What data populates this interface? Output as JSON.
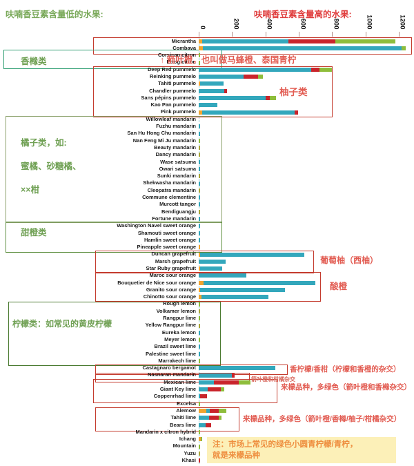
{
  "header": {
    "left_title": "呋喃香豆素含量低的水果:",
    "right_title": "呋喃香豆素含量高的水果:"
  },
  "axis": {
    "ticks": [
      "0",
      "200",
      "400",
      "600",
      "800",
      "1000",
      "1200"
    ],
    "max": 1200
  },
  "colors": {
    "orange": "#f1a42f",
    "teal": "#33a7bc",
    "red": "#c9242b",
    "green": "#8ebd3b",
    "olive": "#a9a63a"
  },
  "annotations": {
    "kaffir_note": "↑ 箭叶橙，也叫做马蜂橙、泰国青柠",
    "citron_group": "香橼类",
    "pummelo_group": "柚子类",
    "mandarin_group_line1": "橘子类，如:",
    "mandarin_group_line2": "蜜橘、砂糖橘、",
    "mandarin_group_line3": "××柑",
    "sweet_orange_group": "甜橙类",
    "grapefruit_group": "葡萄柚（西柚）",
    "sour_orange_group": "酸橙",
    "lemon_group": "柠檬类：如常见的黄皮柠檬",
    "bergamot_note": "香柠檬/香柑（柠檬和香橙的杂交）",
    "nasnaran_note": "箭叶橙和柑橘杂交",
    "lime_group1_note": "来檬品种，多绿色（箭叶橙和香橼杂交）",
    "lime_group2_note": "来檬品种，多绿色（箭叶橙/香橼/柚子/柑橘杂交）",
    "bottom_note_line1": "注：市场上常见的绿色小圆青柠檬/青柠，",
    "bottom_note_line2": "就是来檬品种"
  },
  "chart_data": {
    "type": "bar",
    "orientation": "horizontal",
    "stacked": true,
    "xlim": [
      0,
      1200
    ],
    "x_ticks": [
      0,
      200,
      400,
      600,
      800,
      1000,
      1200
    ],
    "segment_order": [
      "orange",
      "teal",
      "red",
      "green",
      "olive"
    ],
    "rows": [
      {
        "label": "Micrantha",
        "segments": [
          {
            "c": "orange",
            "v": 20
          },
          {
            "c": "teal",
            "v": 520
          },
          {
            "c": "red",
            "v": 280
          },
          {
            "c": "green",
            "v": 360
          }
        ]
      },
      {
        "label": "Combava",
        "segments": [
          {
            "c": "orange",
            "v": 25
          },
          {
            "c": "teal",
            "v": 1190
          },
          {
            "c": "green",
            "v": 25
          }
        ]
      },
      {
        "label": "Corsican citron",
        "segments": [
          {
            "c": "green",
            "v": 8
          }
        ]
      },
      {
        "label": "Etrog citron",
        "segments": [
          {
            "c": "green",
            "v": 10
          }
        ]
      },
      {
        "label": "Deep Red pummelo",
        "segments": [
          {
            "c": "teal",
            "v": 675
          },
          {
            "c": "red",
            "v": 50
          },
          {
            "c": "green",
            "v": 75
          }
        ]
      },
      {
        "label": "Reinking pummelo",
        "segments": [
          {
            "c": "teal",
            "v": 270
          },
          {
            "c": "red",
            "v": 85
          },
          {
            "c": "green",
            "v": 28
          }
        ]
      },
      {
        "label": "Tahiti pummelo",
        "segments": [
          {
            "c": "orange",
            "v": 8
          },
          {
            "c": "teal",
            "v": 140
          }
        ]
      },
      {
        "label": "Chandler pummelo",
        "segments": [
          {
            "c": "teal",
            "v": 155
          },
          {
            "c": "red",
            "v": 15
          }
        ]
      },
      {
        "label": "Sans pépins pummelo",
        "segments": [
          {
            "c": "teal",
            "v": 400
          },
          {
            "c": "red",
            "v": 28
          },
          {
            "c": "green",
            "v": 35
          }
        ]
      },
      {
        "label": "Kao Pan pummelo",
        "segments": [
          {
            "c": "teal",
            "v": 110
          }
        ]
      },
      {
        "label": "Pink pummelo",
        "segments": [
          {
            "c": "orange",
            "v": 22
          },
          {
            "c": "teal",
            "v": 552
          },
          {
            "c": "red",
            "v": 20
          }
        ]
      },
      {
        "label": "Willowleaf mandarin",
        "segments": []
      },
      {
        "label": "Fuzhu mandarin",
        "segments": [
          {
            "c": "teal",
            "v": 6
          }
        ]
      },
      {
        "label": "San Hu Hong Chu mandarin",
        "segments": [
          {
            "c": "teal",
            "v": 5
          }
        ]
      },
      {
        "label": "Nan Feng Mi Ju mandarin",
        "segments": [
          {
            "c": "green",
            "v": 10
          }
        ]
      },
      {
        "label": "Beauty mandarin",
        "segments": [
          {
            "c": "olive",
            "v": 4
          }
        ]
      },
      {
        "label": "Dancy mandarin",
        "segments": [
          {
            "c": "olive",
            "v": 4
          }
        ]
      },
      {
        "label": "Wase satsuma",
        "segments": [
          {
            "c": "teal",
            "v": 8
          }
        ]
      },
      {
        "label": "Owari satsuma",
        "segments": [
          {
            "c": "teal",
            "v": 6
          }
        ]
      },
      {
        "label": "Sunki mandarin",
        "segments": [
          {
            "c": "olive",
            "v": 8
          }
        ]
      },
      {
        "label": "Shekwasha mandarin",
        "segments": [
          {
            "c": "teal",
            "v": 6
          }
        ]
      },
      {
        "label": "Cleopatra mandarin",
        "segments": [
          {
            "c": "olive",
            "v": 4
          }
        ]
      },
      {
        "label": "Commune clementine",
        "segments": [
          {
            "c": "teal",
            "v": 8
          }
        ]
      },
      {
        "label": "Murcott tangor",
        "segments": [
          {
            "c": "teal",
            "v": 2
          }
        ]
      },
      {
        "label": "Bendiguangju",
        "segments": [
          {
            "c": "olive",
            "v": 2
          }
        ]
      },
      {
        "label": "Fortune mandarin",
        "segments": [
          {
            "c": "teal",
            "v": 3
          }
        ]
      },
      {
        "label": "Washington Navel sweet orange",
        "segments": [
          {
            "c": "teal",
            "v": 2
          }
        ]
      },
      {
        "label": "Shamouti sweet orange",
        "segments": [
          {
            "c": "teal",
            "v": 2
          }
        ]
      },
      {
        "label": "Hamlin sweet orange",
        "segments": [
          {
            "c": "teal",
            "v": 2
          }
        ]
      },
      {
        "label": "Pineapple sweet orange",
        "segments": [
          {
            "c": "orange",
            "v": 6
          }
        ]
      },
      {
        "label": "Duncan grapefruit",
        "segments": [
          {
            "c": "orange",
            "v": 10
          },
          {
            "c": "teal",
            "v": 625
          }
        ]
      },
      {
        "label": "Marsh grapefruit",
        "segments": [
          {
            "c": "teal",
            "v": 160
          }
        ]
      },
      {
        "label": "Star Ruby grapefruit",
        "segments": [
          {
            "c": "orange",
            "v": 10
          },
          {
            "c": "teal",
            "v": 130
          }
        ]
      },
      {
        "label": "Maroc sour orange",
        "segments": [
          {
            "c": "teal",
            "v": 285
          }
        ]
      },
      {
        "label": "Bouquetier de Nice sour orange",
        "segments": [
          {
            "c": "orange",
            "v": 30
          },
          {
            "c": "teal",
            "v": 670
          }
        ]
      },
      {
        "label": "Granito sour orange",
        "segments": [
          {
            "c": "orange",
            "v": 8
          },
          {
            "c": "teal",
            "v": 510
          }
        ]
      },
      {
        "label": "Chinotto sour orange",
        "segments": [
          {
            "c": "orange",
            "v": 18
          },
          {
            "c": "teal",
            "v": 400
          }
        ]
      },
      {
        "label": "Rough lemon",
        "segments": [
          {
            "c": "green",
            "v": 4
          }
        ]
      },
      {
        "label": "Volkamer lemon",
        "segments": [
          {
            "c": "olive",
            "v": 8
          }
        ]
      },
      {
        "label": "Rangpur lime",
        "segments": [
          {
            "c": "green",
            "v": 8
          }
        ]
      },
      {
        "label": "Yellow Rangpur lime",
        "segments": [
          {
            "c": "olive",
            "v": 3
          }
        ]
      },
      {
        "label": "Eureka lemon",
        "segments": [
          {
            "c": "teal",
            "v": 2
          }
        ]
      },
      {
        "label": "Meyer lemon",
        "segments": [
          {
            "c": "green",
            "v": 2
          }
        ]
      },
      {
        "label": "Brazil sweet lime",
        "segments": [
          {
            "c": "teal",
            "v": 2
          }
        ]
      },
      {
        "label": "Palestine sweet lime",
        "segments": [
          {
            "c": "teal",
            "v": 2
          }
        ]
      },
      {
        "label": "Marrakech lime",
        "segments": [
          {
            "c": "green",
            "v": 3
          }
        ]
      },
      {
        "label": "Castagnaro bergamot",
        "segments": [
          {
            "c": "teal",
            "v": 460
          }
        ]
      },
      {
        "label": "Nasnaran mandarin",
        "segments": [
          {
            "c": "teal",
            "v": 200
          },
          {
            "c": "red",
            "v": 15
          }
        ]
      },
      {
        "label": "Mexican lime",
        "segments": [
          {
            "c": "teal",
            "v": 90
          },
          {
            "c": "red",
            "v": 150
          },
          {
            "c": "green",
            "v": 70
          }
        ]
      },
      {
        "label": "Giant Key lime",
        "segments": [
          {
            "c": "teal",
            "v": 52
          },
          {
            "c": "red",
            "v": 80
          },
          {
            "c": "green",
            "v": 20
          }
        ]
      },
      {
        "label": "Coppenrhad lime",
        "segments": [
          {
            "c": "teal",
            "v": 8
          },
          {
            "c": "red",
            "v": 42
          }
        ]
      },
      {
        "label": "Excelsa",
        "segments": [
          {
            "c": "green",
            "v": 8
          }
        ]
      },
      {
        "label": "Alemow",
        "segments": [
          {
            "c": "orange",
            "v": 45
          },
          {
            "c": "teal",
            "v": 20
          },
          {
            "c": "red",
            "v": 55
          },
          {
            "c": "green",
            "v": 45
          }
        ]
      },
      {
        "label": "Tahiti lime",
        "segments": [
          {
            "c": "teal",
            "v": 62
          },
          {
            "c": "red",
            "v": 60
          },
          {
            "c": "green",
            "v": 15
          }
        ]
      },
      {
        "label": "Bears lime",
        "segments": [
          {
            "c": "teal",
            "v": 40
          },
          {
            "c": "red",
            "v": 33
          }
        ]
      },
      {
        "label": "Mandarin x citron hybrid",
        "segments": [
          {
            "c": "green",
            "v": 5
          }
        ]
      },
      {
        "label": "Ichang",
        "segments": [
          {
            "c": "orange",
            "v": 12
          },
          {
            "c": "green",
            "v": 10
          }
        ]
      },
      {
        "label": "Mountain",
        "segments": [
          {
            "c": "green",
            "v": 5
          }
        ]
      },
      {
        "label": "Yuzu",
        "segments": [
          {
            "c": "olive",
            "v": 8
          }
        ]
      },
      {
        "label": "Khasi",
        "segments": [
          {
            "c": "red",
            "v": 8
          }
        ]
      }
    ]
  }
}
